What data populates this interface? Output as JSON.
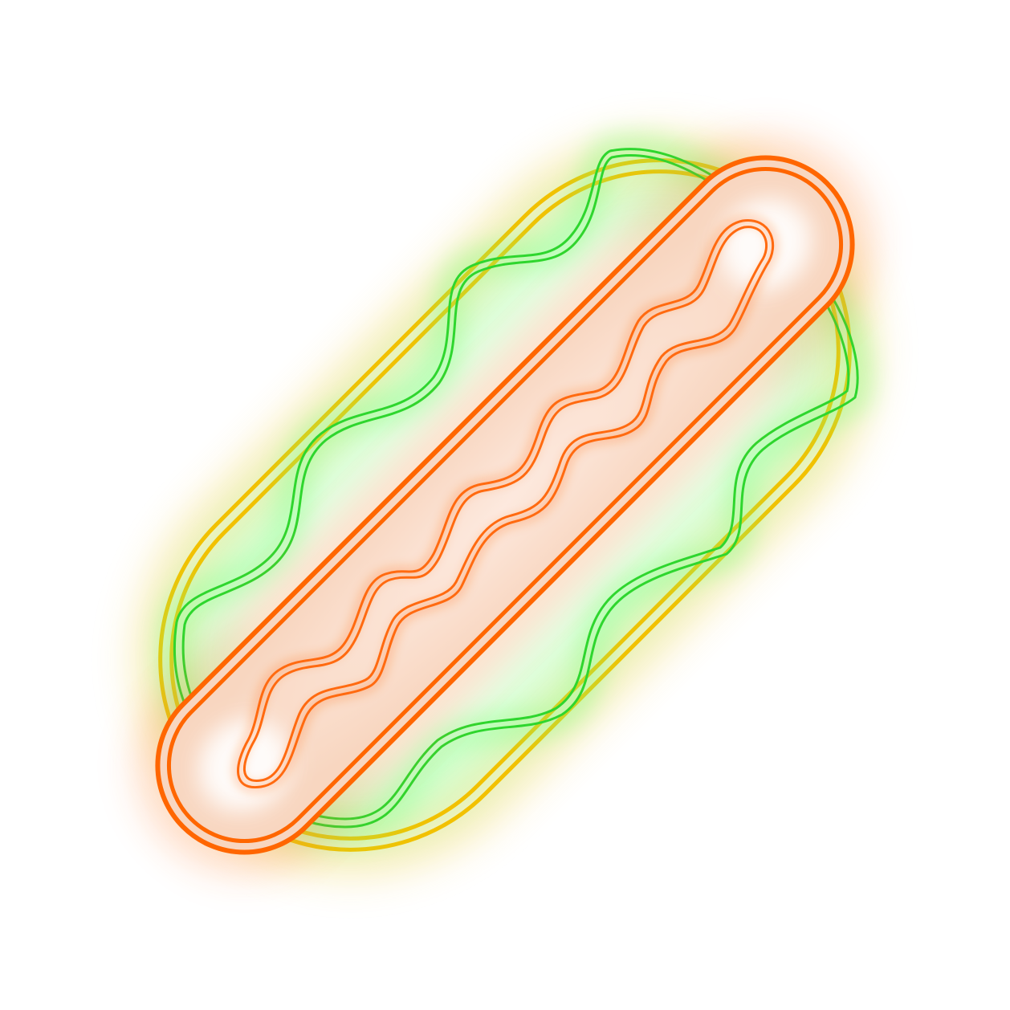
{
  "illustration": {
    "subject": "neon-hot-dog",
    "background_color": "#ffffff",
    "colors": {
      "bun_outline": "#f2c100",
      "bun_glow": "#f5c930",
      "lettuce_outline": "#2ed62e",
      "lettuce_glow": "#7dff7d",
      "sausage_outline": "#ff6600",
      "sausage_glow": "#ff7a2a",
      "sausage_fill": "#fbe2d2",
      "mustard_outline": "#ff6a10",
      "highlight": "#ffffff"
    }
  }
}
